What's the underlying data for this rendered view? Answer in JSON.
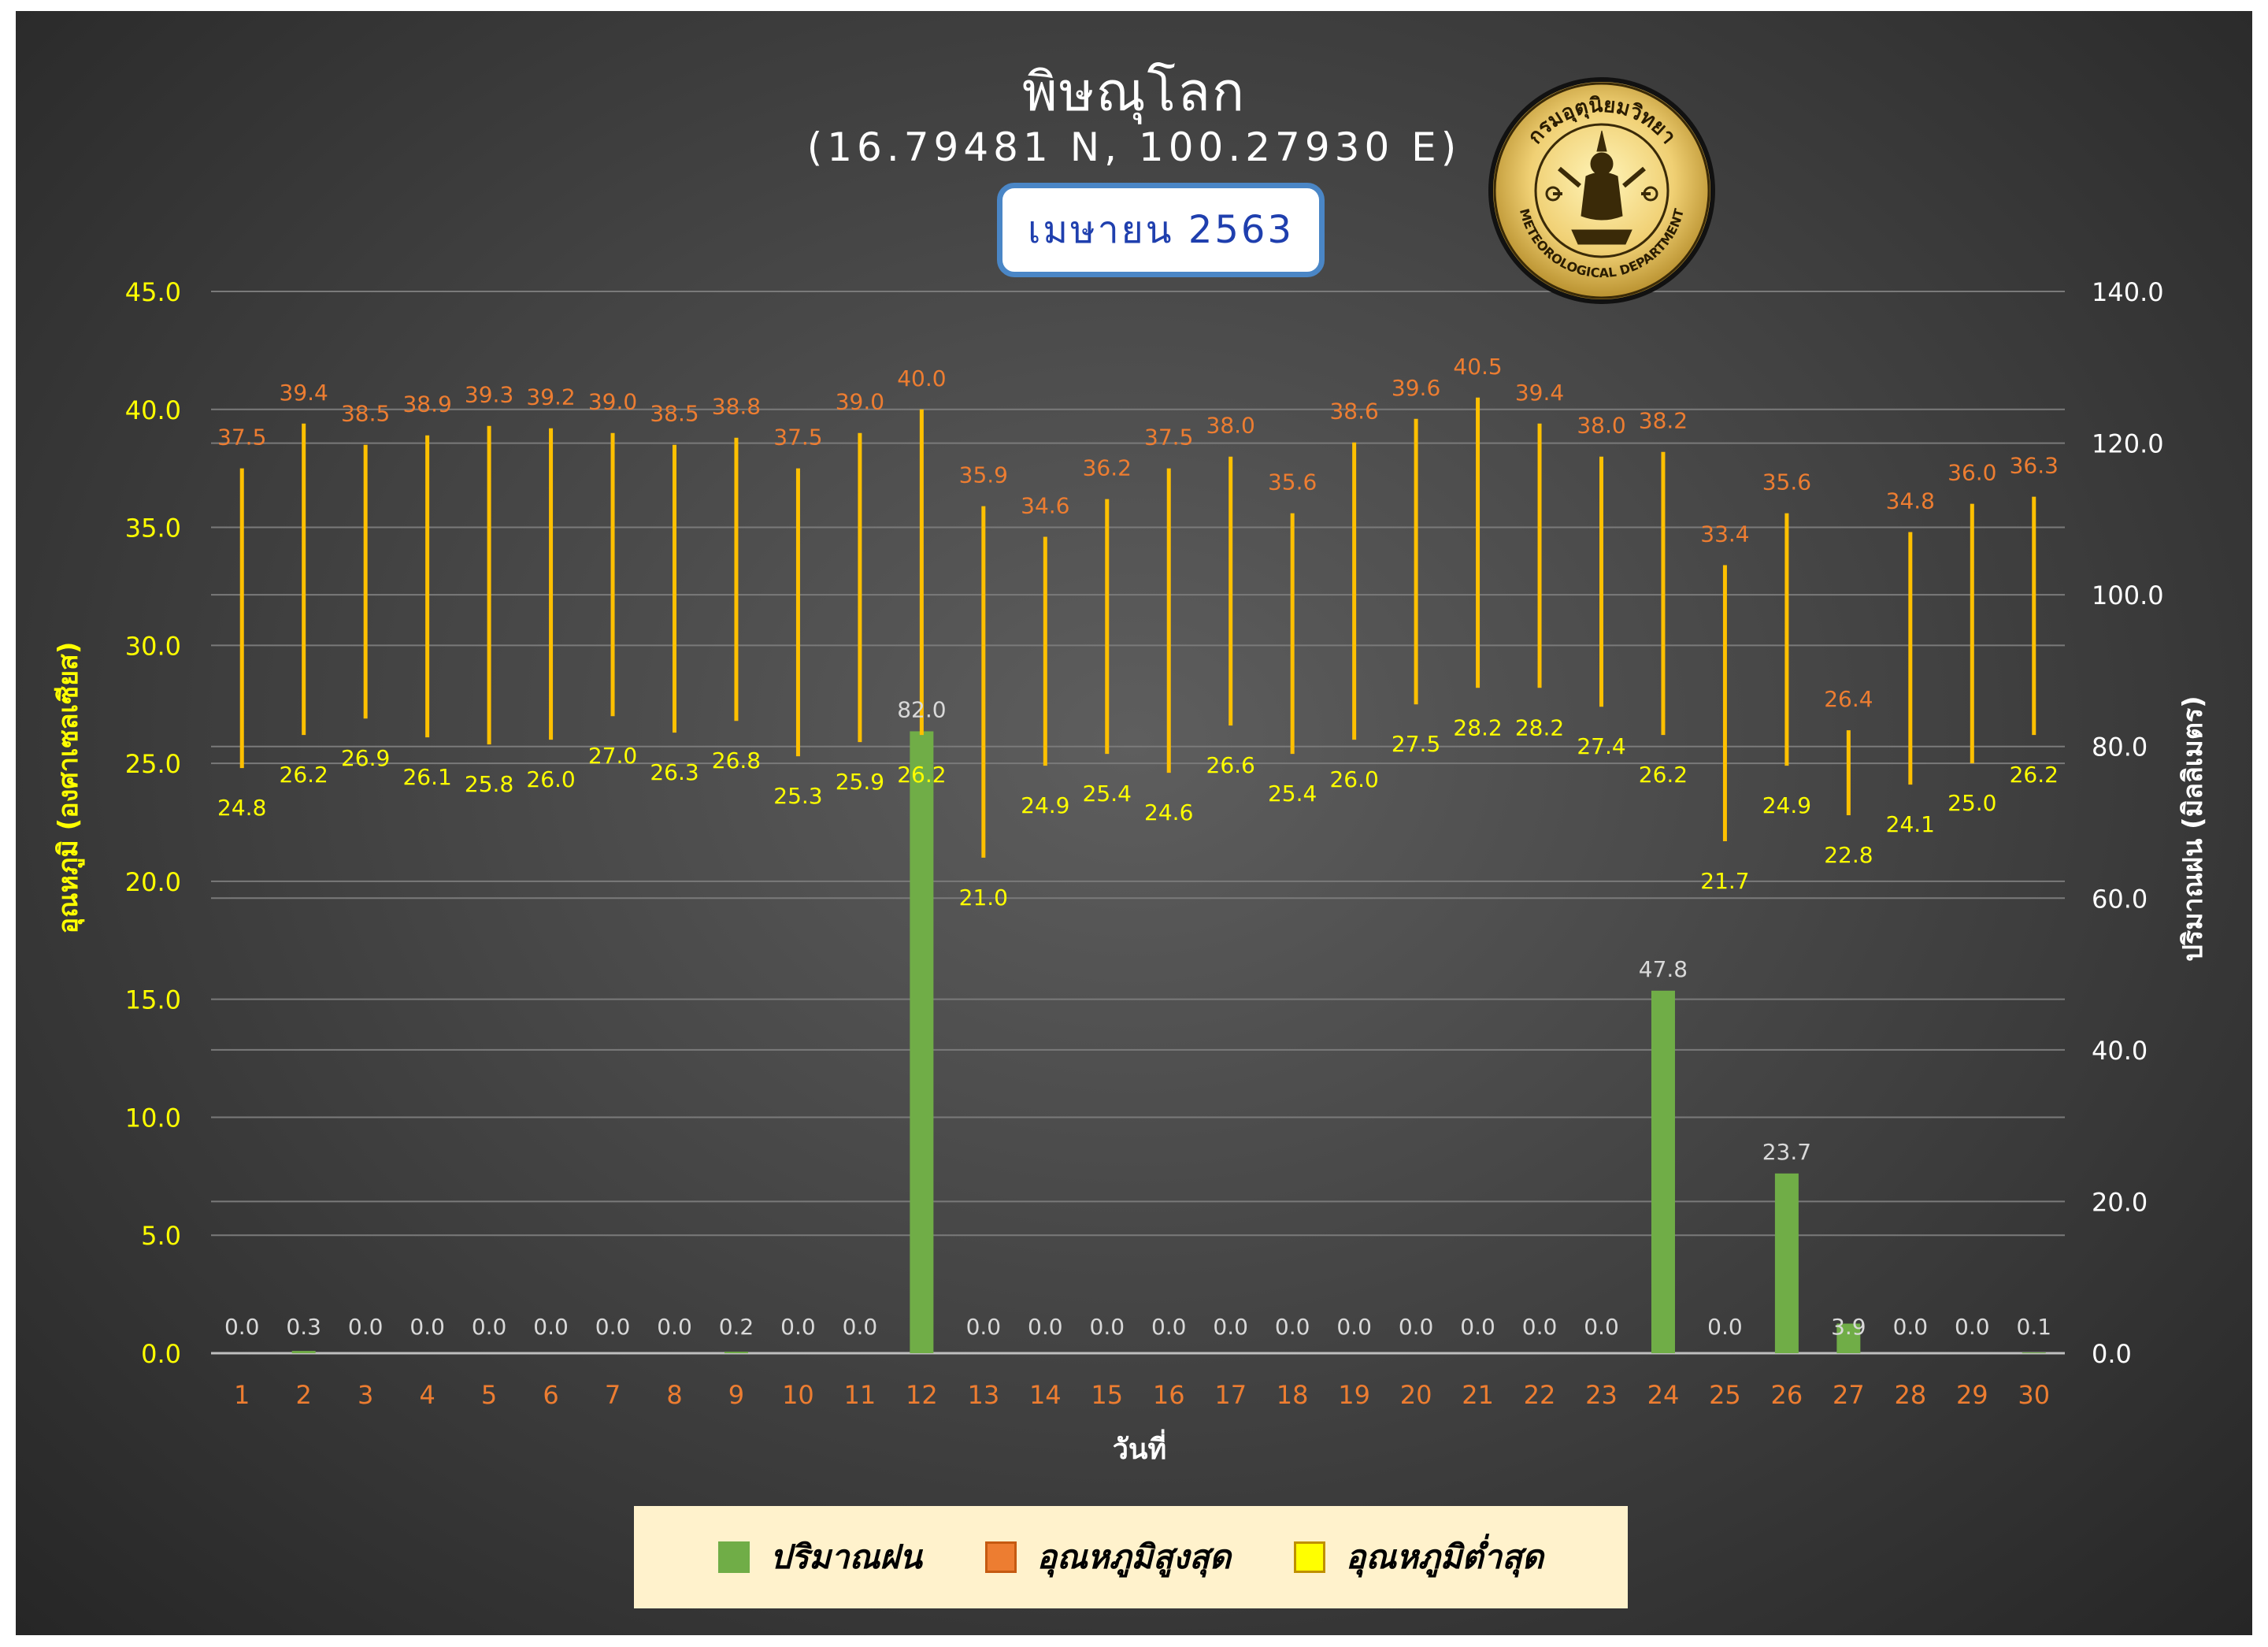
{
  "header": {
    "title": "พิษณุโลก",
    "subtitle": "(16.79481 N, 100.27930 E)",
    "month": "เมษายน 2563"
  },
  "seal": {
    "icon": "meteorological-department-seal",
    "text_top": "กรมอุตุนิยมวิทยา",
    "text_bottom": "METEOROLOGICAL DEPARTMENT"
  },
  "colors": {
    "rain": "#70ad47",
    "temp_line": "#ffc000",
    "max_label": "#ed7d31",
    "min_label": "#ffff00",
    "left_axis": "#ffff00",
    "right_axis": "#ffffff",
    "x_tick": "#ed7d31",
    "grid": "#7a7a7a"
  },
  "legend": [
    {
      "label": "ปริมาณฝน",
      "color": "#70ad47"
    },
    {
      "label": "อุณหภูมิสูงสุด",
      "color": "#ed7d31"
    },
    {
      "label": "อุณหภูมิต่ำสุด",
      "color": "#ffff00"
    }
  ],
  "chart_data": {
    "type": "bar",
    "xlabel": "วันที่",
    "ylabel_left": "อุณหภูมิ (องศาเซลเซียส)",
    "ylabel_right": "ปริมาณฝน (มิลลิเมตร)",
    "ylim_left": [
      0,
      45
    ],
    "ylim_right": [
      0,
      140
    ],
    "yticks_left": [
      "0.0",
      "5.0",
      "10.0",
      "15.0",
      "20.0",
      "25.0",
      "30.0",
      "35.0",
      "40.0",
      "45.0"
    ],
    "yticks_right": [
      "0.0",
      "20.0",
      "40.0",
      "60.0",
      "80.0",
      "100.0",
      "120.0",
      "140.0"
    ],
    "grid": true,
    "legend_position": "bottom",
    "categories": [
      "1",
      "2",
      "3",
      "4",
      "5",
      "6",
      "7",
      "8",
      "9",
      "10",
      "11",
      "12",
      "13",
      "14",
      "15",
      "16",
      "17",
      "18",
      "19",
      "20",
      "21",
      "22",
      "23",
      "24",
      "25",
      "26",
      "27",
      "28",
      "29",
      "30"
    ],
    "series": [
      {
        "name": "ปริมาณฝน",
        "type": "bar",
        "axis": "right",
        "values": [
          0.0,
          0.3,
          0.0,
          0.0,
          0.0,
          0.0,
          0.0,
          0.0,
          0.2,
          0.0,
          0.0,
          82.0,
          0.0,
          0.0,
          0.0,
          0.0,
          0.0,
          0.0,
          0.0,
          0.0,
          0.0,
          0.0,
          0.0,
          47.8,
          0.0,
          23.7,
          3.9,
          0.0,
          0.0,
          0.1
        ]
      },
      {
        "name": "อุณหภูมิสูงสุด",
        "type": "high",
        "axis": "left",
        "values": [
          37.5,
          39.4,
          38.5,
          38.9,
          39.3,
          39.2,
          39.0,
          38.5,
          38.8,
          37.5,
          39.0,
          40.0,
          35.9,
          34.6,
          36.2,
          37.5,
          38.0,
          35.6,
          38.6,
          39.6,
          40.5,
          39.4,
          38.0,
          38.2,
          33.4,
          35.6,
          26.4,
          34.8,
          36.0,
          36.3
        ]
      },
      {
        "name": "อุณหภูมิต่ำสุด",
        "type": "low",
        "axis": "left",
        "values": [
          24.8,
          26.2,
          26.9,
          26.1,
          25.8,
          26.0,
          27.0,
          26.3,
          26.8,
          25.3,
          25.9,
          26.2,
          21.0,
          24.9,
          25.4,
          24.6,
          26.6,
          25.4,
          26.0,
          27.5,
          28.2,
          28.2,
          27.4,
          26.2,
          21.7,
          24.9,
          22.8,
          24.1,
          25.0,
          26.2
        ]
      }
    ]
  }
}
